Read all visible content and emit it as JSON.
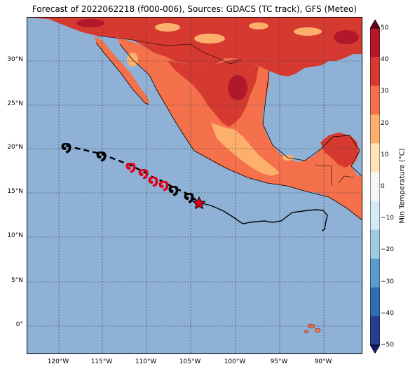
{
  "title": "Forecast of 2022062218 (f000-006), Sources: GDACS (TC track), GFS (Meteo)",
  "map": {
    "lat_labels": [
      "30°N",
      "25°N",
      "20°N",
      "15°N",
      "10°N",
      "5°N",
      "0°"
    ],
    "lon_labels": [
      "120°W",
      "115°W",
      "110°W",
      "105°W",
      "100°W",
      "95°W",
      "90°W"
    ],
    "ocean_color": "#8fb1d6"
  },
  "colorbar": {
    "label": "Min Temperature (°C)",
    "ticks": [
      "50",
      "40",
      "30",
      "20",
      "10",
      "0",
      "−10",
      "−20",
      "−30",
      "−40",
      "−50"
    ],
    "colors": [
      "#68001f",
      "#b2182b",
      "#d6392f",
      "#f4714b",
      "#fdb06b",
      "#fee4b8",
      "#f7f7f7",
      "#d4eaf4",
      "#9ccbe2",
      "#5a9ccb",
      "#2e6db1",
      "#243f91",
      "#141a6b"
    ]
  },
  "track": {
    "current_marker": "star",
    "past_symbol": "tropical-cyclone-icon",
    "forecast_symbol": "hurricane-icon"
  }
}
